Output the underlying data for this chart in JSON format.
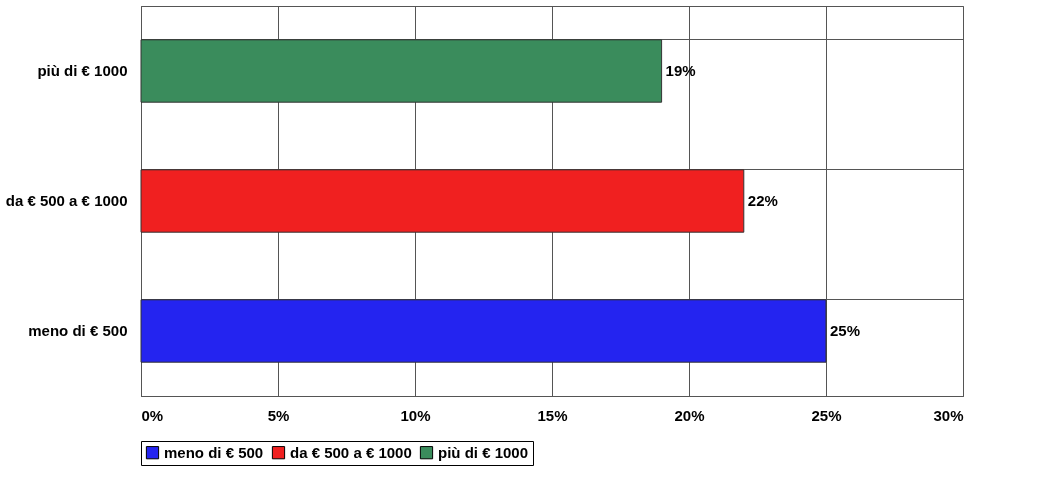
{
  "chart_data": {
    "type": "bar",
    "orientation": "horizontal",
    "categories": [
      "più di € 1000",
      "da € 500 a € 1000",
      "meno di € 500"
    ],
    "series": [
      {
        "name": "meno di € 500",
        "color": "#2424f0",
        "values": [
          null,
          null,
          25
        ],
        "value_labels": [
          null,
          null,
          "25%"
        ]
      },
      {
        "name": "da € 500 a € 1000",
        "color": "#f02020",
        "values": [
          null,
          22,
          null
        ],
        "value_labels": [
          null,
          "22%",
          null
        ]
      },
      {
        "name": "più di € 1000",
        "color": "#3a8c5c",
        "values": [
          19,
          null,
          null
        ],
        "value_labels": [
          "19%",
          null,
          null
        ]
      }
    ],
    "xlim": [
      0,
      30
    ],
    "xticks": [
      {
        "value": 0,
        "label": "0%"
      },
      {
        "value": 5,
        "label": "5%"
      },
      {
        "value": 10,
        "label": "10%"
      },
      {
        "value": 15,
        "label": "15%"
      },
      {
        "value": 20,
        "label": "20%"
      },
      {
        "value": 25,
        "label": "25%"
      },
      {
        "value": 30,
        "label": "30%"
      }
    ],
    "grid": true,
    "legend": "bottom"
  }
}
